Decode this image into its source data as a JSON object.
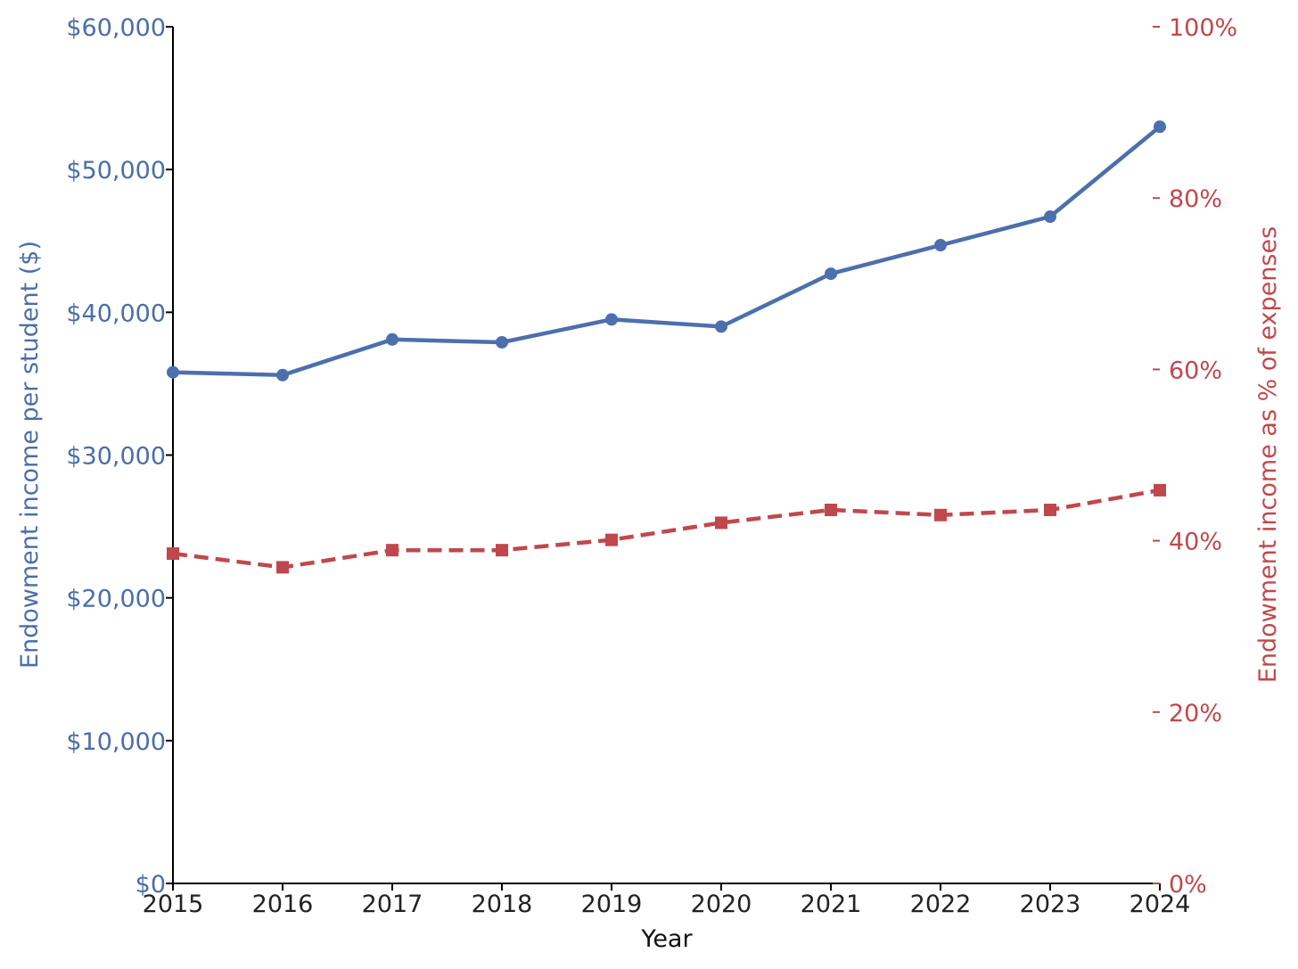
{
  "chart_data": {
    "type": "line",
    "x": [
      2015,
      2016,
      2017,
      2018,
      2019,
      2020,
      2021,
      2022,
      2023,
      2024
    ],
    "xlabel": "Year",
    "ylabel": "Endowment income per student ($)",
    "ylabel_right": "Endowment income as % of expenses",
    "xlim": [
      2015,
      2024
    ],
    "ylim": [
      0,
      60000
    ],
    "ylim_right": [
      0,
      100
    ],
    "y_ticks": [
      "$0",
      "$10,000",
      "$20,000",
      "$30,000",
      "$40,000",
      "$50,000",
      "$60,000"
    ],
    "y_ticks_right": [
      "0%",
      "20%",
      "40%",
      "60%",
      "80%",
      "100%"
    ],
    "x_ticks": [
      "2015",
      "2016",
      "2017",
      "2018",
      "2019",
      "2020",
      "2021",
      "2022",
      "2023",
      "2024"
    ],
    "grid": false,
    "series": [
      {
        "axis": "left",
        "color": "#4c6fad",
        "line_style": "solid",
        "marker": "circle",
        "values": [
          35800,
          35600,
          38100,
          37900,
          39500,
          39000,
          42700,
          44700,
          46700,
          53000
        ]
      },
      {
        "axis": "right",
        "color": "#c0484d",
        "line_style": "dashed",
        "marker": "square",
        "values": [
          38.5,
          36.9,
          38.9,
          38.9,
          40.1,
          42.1,
          43.6,
          43.0,
          43.6,
          45.9
        ]
      }
    ],
    "colors": {
      "left_axis": "#4a6ea8",
      "right_axis": "#c0484d",
      "x_axis": "#222222"
    }
  }
}
